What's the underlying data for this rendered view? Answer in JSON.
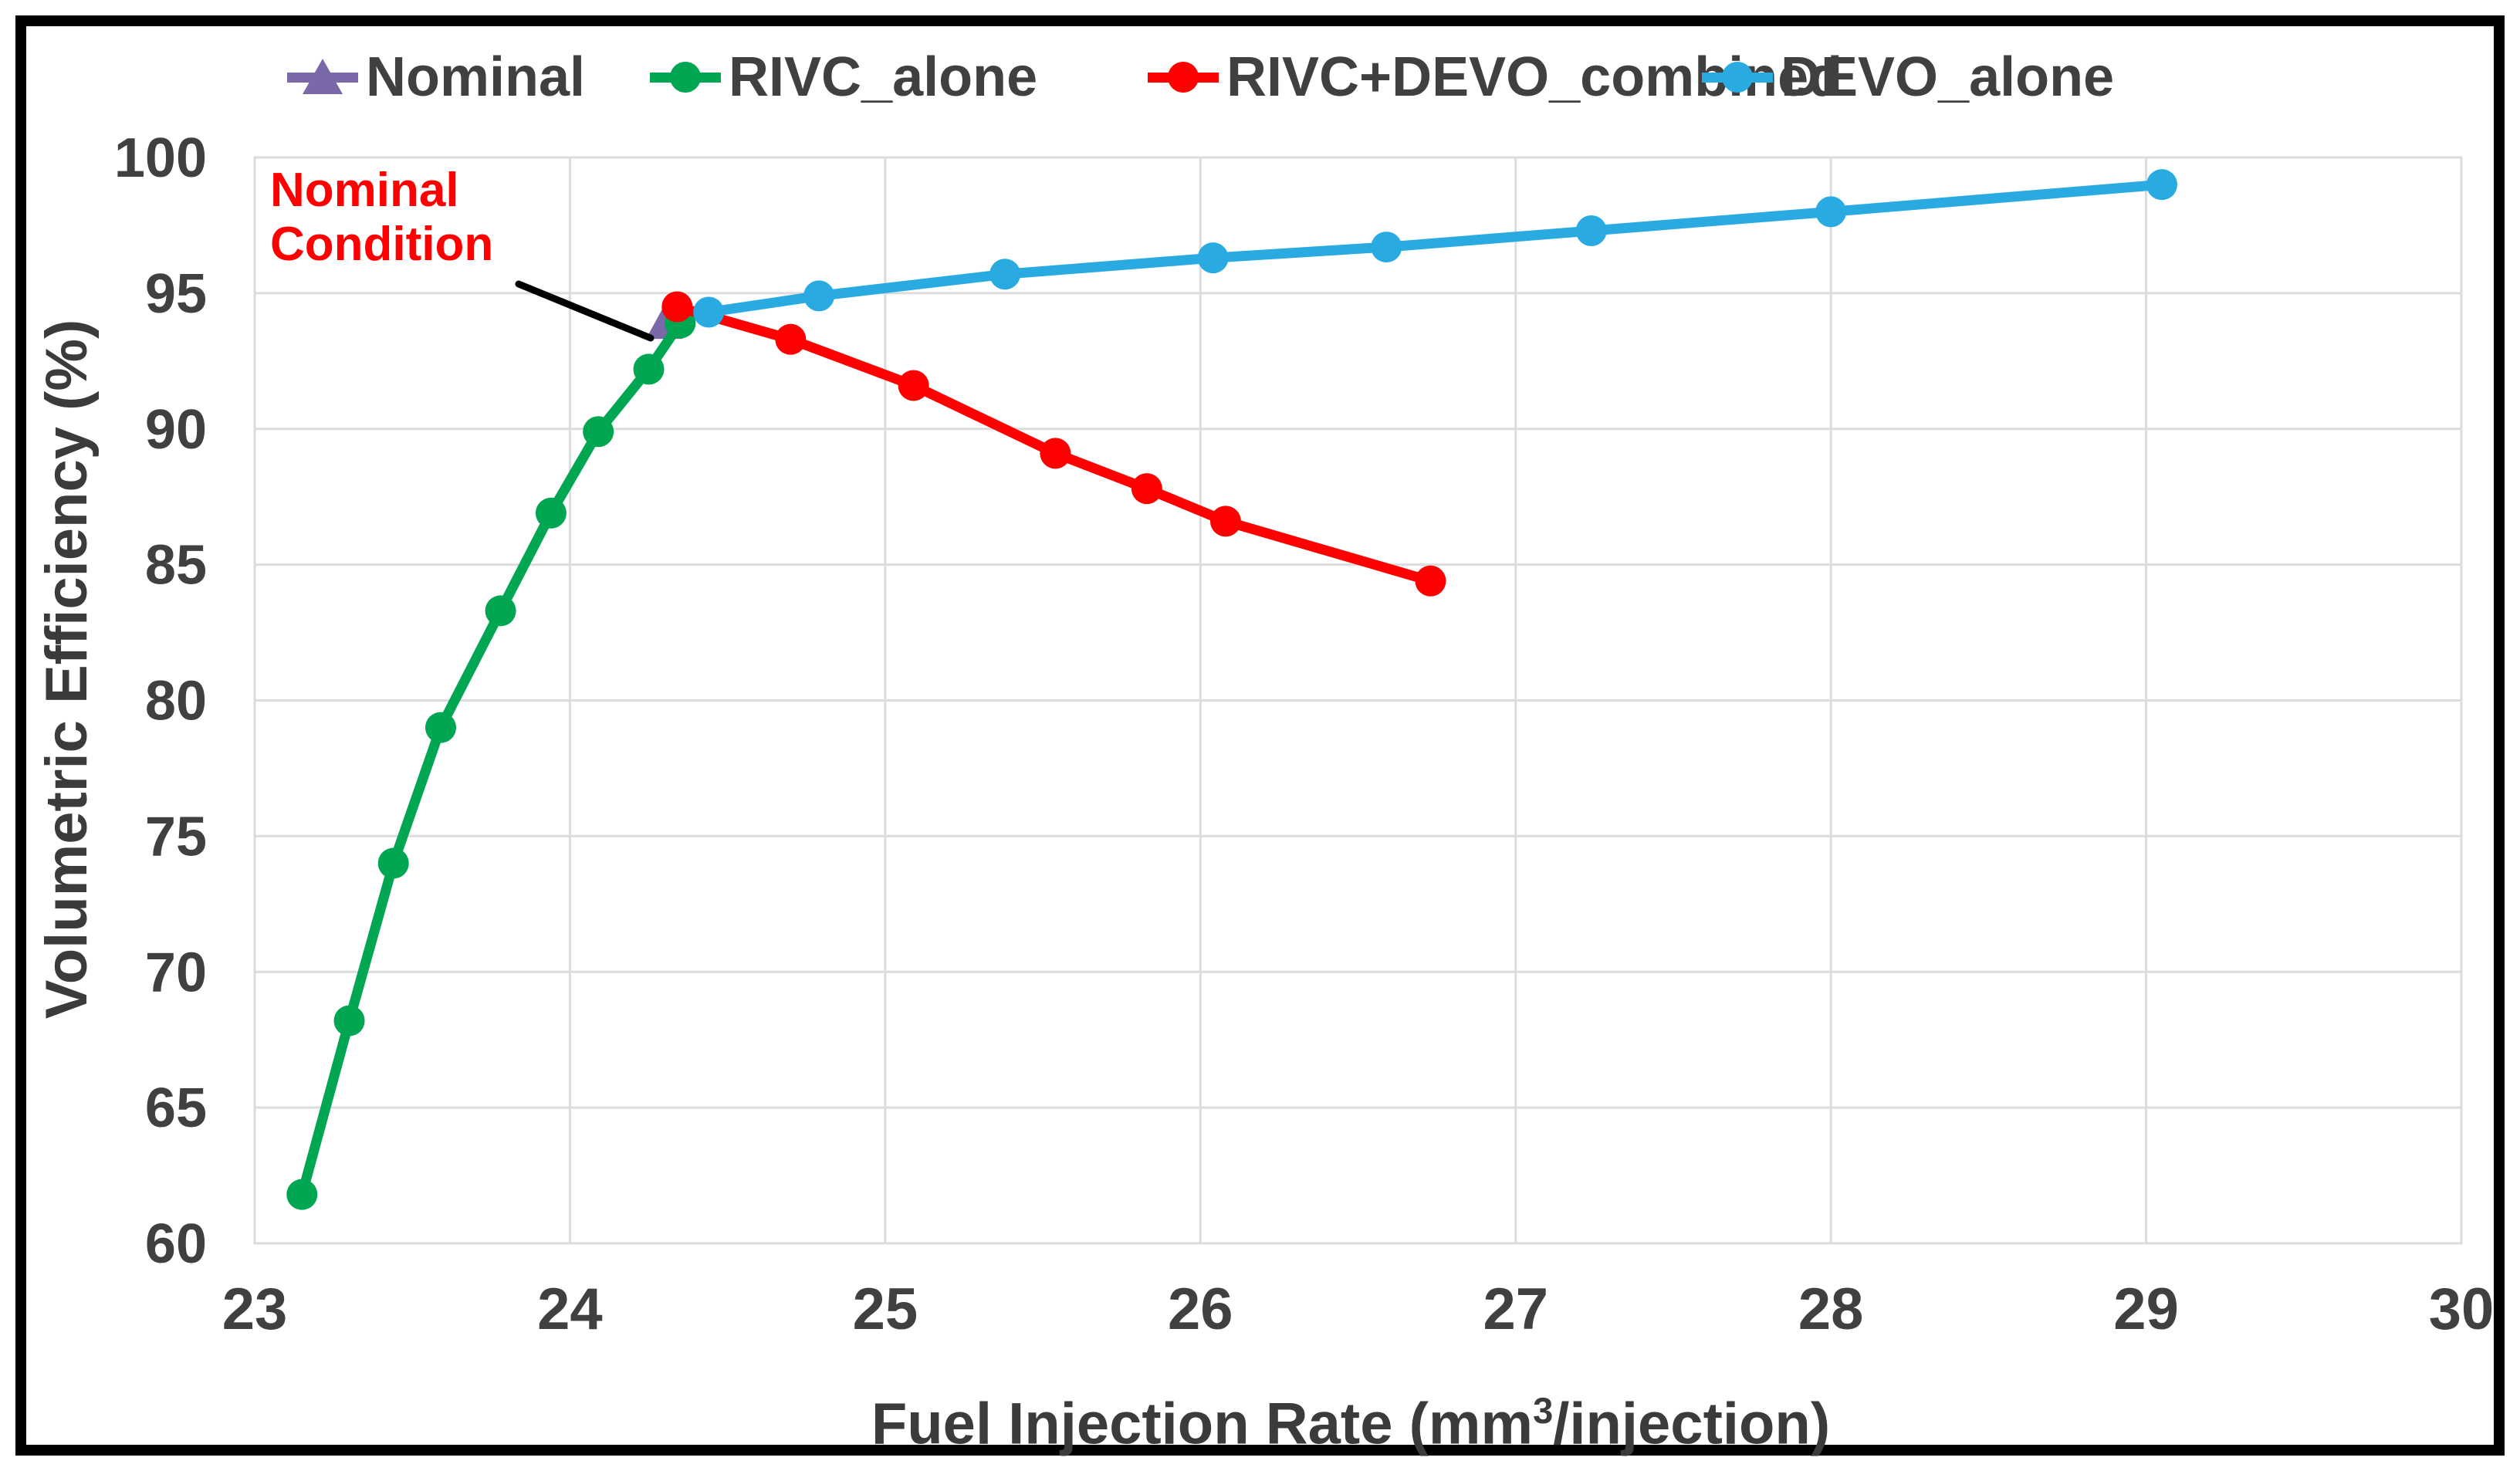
{
  "page": {
    "background": "#FFFFFF",
    "frame_color": "#000000"
  },
  "legend": {
    "position": "top",
    "items": [
      {
        "label": "Nominal",
        "color": "#7B68A8",
        "marker": "triangle"
      },
      {
        "label": "RIVC_alone",
        "color": "#00A651",
        "marker": "circle"
      },
      {
        "label": "RIVC+DEVO_combined",
        "color": "#FF0000",
        "marker": "circle"
      },
      {
        "label": "DEVO_alone",
        "color": "#29ABE2",
        "marker": "circle"
      }
    ]
  },
  "annotation": {
    "text": "Nominal Condition",
    "color": "#FF0000",
    "points_to": [
      24.3,
      93.8
    ]
  },
  "chart_data": {
    "type": "line",
    "title": "",
    "xlabel": "Fuel Injection Rate (mm³/injection)",
    "xlabel_parts": {
      "pre": "Fuel Injection Rate (mm",
      "sup": "3",
      "post": "/injection)"
    },
    "ylabel": "Volumetric Efficiency (%)",
    "xlim": [
      23,
      30
    ],
    "ylim": [
      60,
      100
    ],
    "xticks": [
      23,
      24,
      25,
      26,
      27,
      28,
      29,
      30
    ],
    "yticks": [
      60,
      65,
      70,
      75,
      80,
      85,
      90,
      95,
      100
    ],
    "grid": true,
    "grid_color": "#DCDCDC",
    "tick_color": "#404040",
    "legend_position": "top",
    "series": [
      {
        "name": "Nominal",
        "color": "#7B68A8",
        "marker": "triangle",
        "points": [
          [
            24.3,
            93.8
          ]
        ]
      },
      {
        "name": "RIVC_alone",
        "color": "#00A651",
        "marker": "circle",
        "points": [
          [
            23.15,
            61.8
          ],
          [
            23.3,
            68.2
          ],
          [
            23.44,
            74.0
          ],
          [
            23.59,
            79.0
          ],
          [
            23.78,
            83.3
          ],
          [
            23.94,
            86.9
          ],
          [
            24.09,
            89.9
          ],
          [
            24.25,
            92.2
          ],
          [
            24.35,
            93.9
          ]
        ]
      },
      {
        "name": "RIVC+DEVO_combined",
        "color": "#FF0000",
        "marker": "circle",
        "points": [
          [
            24.34,
            94.5
          ],
          [
            24.7,
            93.3
          ],
          [
            25.09,
            91.6
          ],
          [
            25.54,
            89.1
          ],
          [
            25.83,
            87.8
          ],
          [
            26.08,
            86.6
          ],
          [
            26.73,
            84.4
          ]
        ]
      },
      {
        "name": "DEVO_alone",
        "color": "#29ABE2",
        "marker": "circle",
        "points": [
          [
            24.44,
            94.3
          ],
          [
            24.79,
            94.9
          ],
          [
            25.38,
            95.7
          ],
          [
            26.04,
            96.3
          ],
          [
            26.59,
            96.7
          ],
          [
            27.24,
            97.3
          ],
          [
            28.0,
            98.0
          ],
          [
            29.05,
            99.0
          ]
        ]
      }
    ],
    "annotation_line": {
      "x1": 672,
      "y1": 368,
      "x2": 843,
      "y2": 438,
      "color": "#000000"
    }
  }
}
